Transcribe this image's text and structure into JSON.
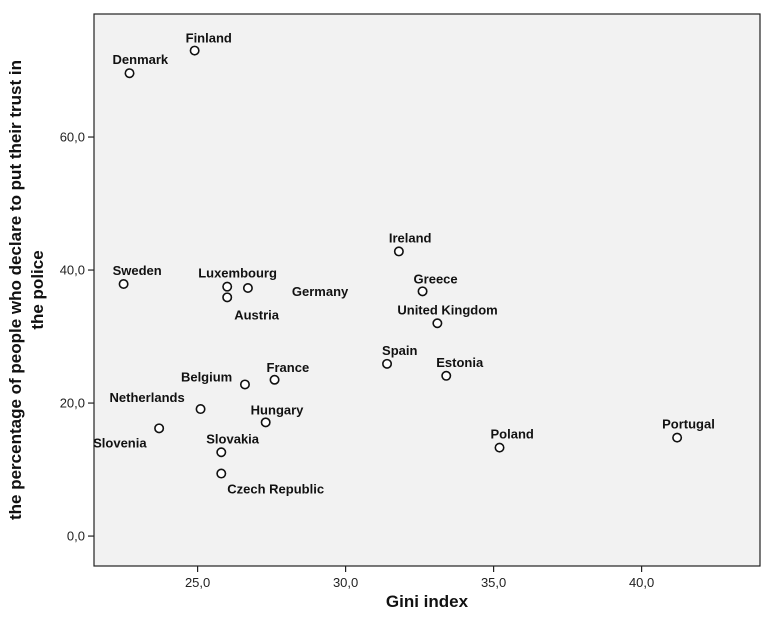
{
  "chart_data": {
    "type": "scatter",
    "xlabel": "Gini index",
    "ylabel_lines": [
      "the percentage of people who declare to put their trust in",
      "the police"
    ],
    "xlim": [
      21.5,
      44.0
    ],
    "ylim": [
      -4.5,
      78.5
    ],
    "x_ticks": [
      {
        "value": 25.0,
        "label": "25,0"
      },
      {
        "value": 30.0,
        "label": "30,0"
      },
      {
        "value": 35.0,
        "label": "35,0"
      },
      {
        "value": 40.0,
        "label": "40,0"
      }
    ],
    "y_ticks": [
      {
        "value": 0,
        "label": "0,0"
      },
      {
        "value": 20,
        "label": "20,0"
      },
      {
        "value": 40,
        "label": "40,0"
      },
      {
        "value": 60,
        "label": "60,0"
      }
    ],
    "grid": false,
    "points": [
      {
        "label": "Finland",
        "x": 24.9,
        "y": 73.0,
        "anchor": "start",
        "dx": -9,
        "dy": -8
      },
      {
        "label": "Denmark",
        "x": 22.7,
        "y": 69.6,
        "anchor": "start",
        "dx": -17,
        "dy": -9
      },
      {
        "label": "Sweden",
        "x": 22.5,
        "y": 37.9,
        "anchor": "start",
        "dx": -11,
        "dy": -9
      },
      {
        "label": "Luxembourg",
        "x": 26.0,
        "y": 37.5,
        "anchor": "start",
        "dx": -29,
        "dy": -9
      },
      {
        "label": "Germany",
        "x": 26.7,
        "y": 37.3,
        "anchor": "start",
        "dx": 44,
        "dy": 8
      },
      {
        "label": "Austria",
        "x": 26.0,
        "y": 35.9,
        "anchor": "start",
        "dx": 7,
        "dy": 22
      },
      {
        "label": "Ireland",
        "x": 31.8,
        "y": 42.8,
        "anchor": "start",
        "dx": -10,
        "dy": -9
      },
      {
        "label": "Greece",
        "x": 32.6,
        "y": 36.8,
        "anchor": "start",
        "dx": -9,
        "dy": -8
      },
      {
        "label": "United Kingdom",
        "x": 33.1,
        "y": 32.0,
        "anchor": "start",
        "dx": -40,
        "dy": -9
      },
      {
        "label": "Spain",
        "x": 31.4,
        "y": 25.9,
        "anchor": "start",
        "dx": -5,
        "dy": -9
      },
      {
        "label": "Estonia",
        "x": 33.4,
        "y": 24.1,
        "anchor": "start",
        "dx": -10,
        "dy": -9
      },
      {
        "label": "France",
        "x": 27.6,
        "y": 23.5,
        "anchor": "start",
        "dx": -8,
        "dy": -8
      },
      {
        "label": "Belgium",
        "x": 26.6,
        "y": 22.8,
        "anchor": "start",
        "dx": -64,
        "dy": -3
      },
      {
        "label": "Netherlands",
        "x": 25.1,
        "y": 19.1,
        "anchor": "start",
        "dx": -91,
        "dy": -7
      },
      {
        "label": "Hungary",
        "x": 27.3,
        "y": 17.1,
        "anchor": "start",
        "dx": -15,
        "dy": -8
      },
      {
        "label": "Slovenia",
        "x": 23.7,
        "y": 16.2,
        "anchor": "start",
        "dx": -66,
        "dy": 19
      },
      {
        "label": "Slovakia",
        "x": 25.8,
        "y": 12.6,
        "anchor": "start",
        "dx": -15,
        "dy": -9
      },
      {
        "label": "Czech Republic",
        "x": 25.8,
        "y": 9.4,
        "anchor": "start",
        "dx": 6,
        "dy": 20
      },
      {
        "label": "Poland",
        "x": 35.2,
        "y": 13.3,
        "anchor": "start",
        "dx": -9,
        "dy": -9
      },
      {
        "label": "Portugal",
        "x": 41.2,
        "y": 14.8,
        "anchor": "start",
        "dx": -15,
        "dy": -9
      }
    ]
  }
}
